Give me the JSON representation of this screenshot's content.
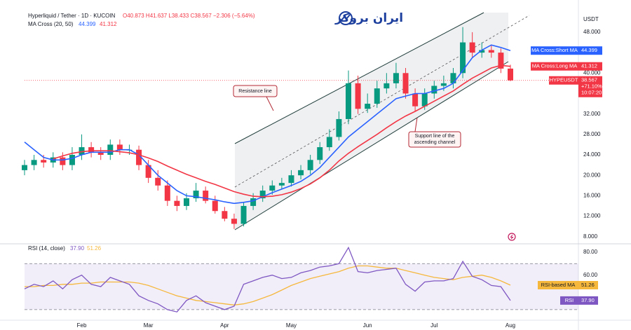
{
  "chart_data": [
    {
      "type": "candlestick",
      "title": "Hyperliquid / Tether · 1D · KUCOIN",
      "subtitle": "O40.873 H41.637 L38.433 C38.567 −2.306 (−5.64%)",
      "indicator": "MA Cross (20, 50)",
      "unit": "USDT",
      "watermark": "ایران بروکر",
      "categories": [
        null,
        null,
        null,
        null,
        null,
        null,
        "Feb",
        null,
        null,
        null,
        null,
        null,
        null,
        "Mar",
        null,
        null,
        null,
        null,
        null,
        null,
        null,
        "Apr",
        null,
        null,
        null,
        null,
        null,
        null,
        "May",
        null,
        null,
        null,
        null,
        null,
        null,
        null,
        "Jun",
        null,
        null,
        null,
        null,
        null,
        null,
        "Jul",
        null,
        null,
        null,
        null,
        null,
        null,
        null,
        "Aug"
      ],
      "open": [
        21,
        22,
        23,
        22.5,
        23.5,
        22,
        24,
        25.5,
        24.5,
        24,
        26,
        25,
        25,
        22,
        19.5,
        18,
        15,
        14,
        15.5,
        17,
        15,
        13,
        11.5,
        10.5,
        14,
        15.5,
        17,
        18,
        18.5,
        20,
        21,
        23,
        25.5,
        27.5,
        31,
        38,
        33,
        34,
        37,
        38,
        40,
        36,
        33.5,
        36,
        37.5,
        38,
        40,
        46,
        44,
        44.5,
        44,
        40.873
      ],
      "high": [
        23,
        24,
        24,
        24.5,
        24.5,
        25.5,
        28,
        26.5,
        25.5,
        27,
        27,
        26,
        25.8,
        23,
        21,
        19,
        16,
        16.5,
        18.5,
        17.8,
        16,
        13.8,
        12.5,
        14.8,
        16.5,
        18,
        19,
        19.5,
        21,
        22,
        24,
        26.5,
        29,
        32.5,
        40.5,
        39.5,
        36,
        38.5,
        40,
        42,
        41,
        37,
        37,
        38.5,
        39.5,
        41,
        49,
        48,
        46,
        45.5,
        44.8,
        41.637
      ],
      "low": [
        20,
        21,
        21.5,
        21.5,
        21,
        21,
        23,
        23.5,
        23,
        23,
        24,
        24,
        21,
        18.5,
        17,
        14,
        13,
        13.2,
        14.8,
        14.5,
        12.5,
        11,
        9.5,
        10,
        13.2,
        14.8,
        16.2,
        17.2,
        17.8,
        19.2,
        20.2,
        22.2,
        24.8,
        26.8,
        30,
        32,
        32.2,
        33.2,
        36,
        37,
        35,
        32.5,
        32.8,
        35,
        36.5,
        37,
        39,
        43,
        43,
        43,
        40,
        38.433
      ],
      "close": [
        22,
        23,
        22.5,
        23.5,
        22,
        24,
        25.5,
        24.5,
        24,
        26,
        25,
        25,
        22,
        19.5,
        18,
        15,
        14,
        15.5,
        17,
        15,
        13,
        11.5,
        10.5,
        14,
        15.5,
        17,
        18,
        18.5,
        20,
        21,
        23,
        25.5,
        27.5,
        31,
        38,
        33,
        34,
        37,
        38,
        40,
        36,
        33.5,
        36,
        37.5,
        38,
        40,
        46,
        44,
        44.5,
        44,
        40.873,
        38.567
      ],
      "up_color": "#089981",
      "down_color": "#f23645",
      "series": [
        {
          "name": "MA Cross:Short MA",
          "color": "#2962ff",
          "values": [
            26.5,
            25,
            23.5,
            23,
            23,
            23.3,
            24,
            24.5,
            24.5,
            24.5,
            25,
            25,
            24,
            22,
            20,
            18.5,
            17,
            16,
            15.8,
            15.5,
            15.2,
            14.8,
            14.5,
            14.7,
            15,
            15.8,
            16.6,
            17.3,
            18,
            18.8,
            20,
            21.5,
            23.5,
            25.5,
            27.5,
            29,
            30.5,
            32,
            33.5,
            35,
            35.5,
            36,
            36,
            36.5,
            37,
            38,
            40.5,
            43,
            44.5,
            45.5,
            45,
            44.399
          ]
        },
        {
          "name": "MA Cross:Long MA",
          "color": "#f23645",
          "values": [
            null,
            null,
            null,
            23.2,
            23.8,
            24.3,
            24.6,
            24.8,
            24.8,
            24.8,
            24.6,
            24.4,
            24,
            23.4,
            22.7,
            21.8,
            21,
            20.2,
            19.5,
            18.8,
            18.2,
            17.5,
            16.8,
            16.3,
            15.9,
            15.8,
            15.9,
            16.2,
            16.7,
            17.4,
            18.3,
            19.5,
            21,
            22.8,
            24.3,
            25.6,
            26.8,
            28,
            29.3,
            30.5,
            31.6,
            32.5,
            33.5,
            34.5,
            35.5,
            36.5,
            37.8,
            39,
            40,
            41,
            41.5,
            41.312
          ]
        }
      ],
      "last_price_tag": {
        "symbol": "HYPEUSDT",
        "change": "+71.10%",
        "countdown": "10:07:20"
      },
      "ylim": [
        7,
        53.2
      ],
      "yticks": [
        {
          "value": 8,
          "label": "8.000"
        },
        {
          "value": 12,
          "label": "12.000"
        },
        {
          "value": 16,
          "label": "16.000"
        },
        {
          "value": 20,
          "label": "20.000"
        },
        {
          "value": 24,
          "label": "24.000"
        },
        {
          "value": 28,
          "label": "28.000"
        },
        {
          "value": 32,
          "label": "32.000"
        },
        {
          "value": 40,
          "label": "40.000"
        },
        {
          "value": 48,
          "label": "48.000"
        }
      ],
      "grid": false,
      "annotations": [
        {
          "lines": [
            "Resistance line"
          ]
        },
        {
          "lines": [
            "Support line of the",
            "ascending channel"
          ]
        }
      ]
    },
    {
      "type": "line",
      "title": "RSI (14, close)",
      "series": [
        {
          "name": "RSI",
          "color": "#7e57c2",
          "values": [
            48,
            52,
            50,
            55,
            48,
            56,
            60,
            52,
            50,
            58,
            55,
            52,
            42,
            38,
            35,
            30,
            28,
            38,
            42,
            36,
            33,
            30,
            33,
            52,
            55,
            58,
            60,
            57,
            58,
            62,
            64,
            67,
            68,
            70,
            84,
            63,
            62,
            64,
            65,
            66,
            52,
            46,
            54,
            55,
            55,
            57,
            72,
            59,
            56,
            51,
            50,
            37.9
          ],
          "value_labels": [
            null,
            null,
            null,
            null,
            null,
            null,
            null,
            null,
            null,
            null,
            null,
            null,
            null,
            null,
            null,
            null,
            null,
            null,
            null,
            null,
            null,
            null,
            null,
            null,
            null,
            null,
            null,
            null,
            null,
            null,
            null,
            null,
            null,
            null,
            null,
            null,
            null,
            null,
            null,
            null,
            null,
            null,
            null,
            null,
            null,
            null,
            null,
            null,
            null,
            null,
            null,
            "37.90"
          ]
        },
        {
          "name": "RSI-based MA",
          "color": "#f5b83d",
          "values": [
            50,
            50,
            51,
            51,
            52,
            52,
            53,
            53,
            54,
            54,
            54,
            54,
            53,
            51,
            48,
            45,
            42,
            40,
            38,
            37,
            36,
            35,
            34,
            35,
            37,
            40,
            43,
            47,
            51,
            54,
            57,
            59,
            61,
            63,
            66,
            68,
            68,
            67,
            66,
            66,
            64,
            62,
            60,
            58,
            57,
            56,
            58,
            59,
            60,
            58,
            55,
            51.26
          ]
        }
      ],
      "bands": [
        30,
        70
      ],
      "ylim": [
        22,
        86
      ],
      "yticks": [
        {
          "value": 80,
          "label": "80.00"
        },
        {
          "value": 60,
          "label": "60.00"
        }
      ]
    }
  ]
}
